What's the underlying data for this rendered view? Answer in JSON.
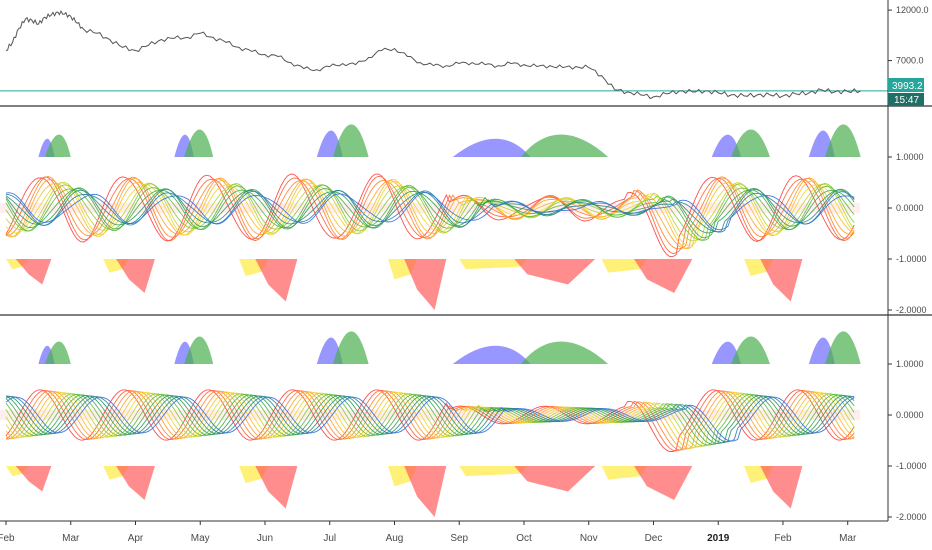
{
  "colors": {
    "price_line": "#555555",
    "hline": "#26a69a",
    "badge_price": "#26a69a",
    "badge_time": "#1f6f67",
    "hist_blue": "#6b6bff",
    "hist_green": "#4caf50",
    "hist_red": "#ff5c5c",
    "hist_yellow": "#ffee55",
    "hist_orange": "#ffb74d",
    "separator": "#333333",
    "axis_text": "#4a4a4a"
  },
  "badges": {
    "price": "3993.2",
    "time": "15:47"
  },
  "chart_data": [
    {
      "type": "line",
      "pane": "price",
      "y_ticks": [
        "12000.0",
        "7000.0"
      ],
      "y_tick_values": [
        12000,
        7000
      ],
      "ylim": [
        2500,
        13000
      ],
      "x_months": [
        "Feb",
        "Mar",
        "Apr",
        "May",
        "Jun",
        "Jul",
        "Aug",
        "Sep",
        "Oct",
        "Nov",
        "Dec",
        "2019",
        "Feb",
        "Mar"
      ],
      "x_month_index": [
        0,
        1,
        2,
        3,
        4,
        5,
        6,
        7,
        8,
        9,
        10,
        11,
        12,
        13
      ],
      "x_bold": [
        "2019"
      ],
      "series": [
        {
          "x": [
            0,
            0.1,
            0.2,
            0.3,
            0.4,
            0.5,
            0.6,
            0.7,
            0.8,
            0.9,
            1.0,
            1.1,
            1.2,
            1.4,
            1.6,
            1.8,
            2.0,
            2.2,
            2.4,
            2.6,
            2.8,
            3.0,
            3.2,
            3.4,
            3.6,
            3.8,
            4.0,
            4.2,
            4.4,
            4.6,
            4.8,
            5.0,
            5.2,
            5.4,
            5.6,
            5.8,
            6.0,
            6.2,
            6.4,
            6.6,
            6.8,
            7.0,
            7.2,
            7.4,
            7.6,
            7.8,
            8.0,
            8.2,
            8.4,
            8.6,
            8.8,
            9.0,
            9.2,
            9.4,
            9.6,
            9.8,
            10.0,
            10.2,
            10.4,
            10.6,
            10.8,
            11.0,
            11.2,
            11.4,
            11.6,
            11.8,
            12.0,
            12.2,
            12.4,
            12.6,
            12.8,
            13.0,
            13.2
          ],
          "y": [
            8000,
            8800,
            10200,
            11100,
            11000,
            10600,
            11300,
            11500,
            11800,
            11600,
            11400,
            10700,
            10100,
            9700,
            9100,
            8300,
            8000,
            8500,
            9100,
            9200,
            9300,
            9700,
            9300,
            8800,
            8300,
            7900,
            7600,
            7400,
            6800,
            6200,
            6100,
            6400,
            6700,
            6600,
            7300,
            8000,
            8200,
            7400,
            6800,
            6500,
            6500,
            6700,
            6800,
            6600,
            6500,
            6700,
            6600,
            6400,
            6500,
            6300,
            6400,
            6300,
            5500,
            4100,
            3900,
            3600,
            3400,
            3700,
            4000,
            3900,
            4000,
            3800,
            3600,
            3500,
            3600,
            3600,
            3500,
            3700,
            3800,
            4100,
            3900,
            3950,
            4000
          ]
        }
      ]
    },
    {
      "type": "area",
      "pane": "indicator-1",
      "y_ticks": [
        "1.0000",
        "0.0000",
        "-1.0000",
        "-2.0000"
      ],
      "y_tick_values": [
        1,
        0,
        -1,
        -2
      ],
      "ylim": [
        -2.0,
        2.0
      ]
    },
    {
      "type": "area",
      "pane": "indicator-2",
      "y_ticks": [
        "1.0000",
        "0.0000",
        "-1.0000",
        "-2.0000"
      ],
      "y_tick_values": [
        1,
        0,
        -1,
        -2
      ],
      "ylim": [
        -2.0,
        2.0
      ]
    }
  ]
}
